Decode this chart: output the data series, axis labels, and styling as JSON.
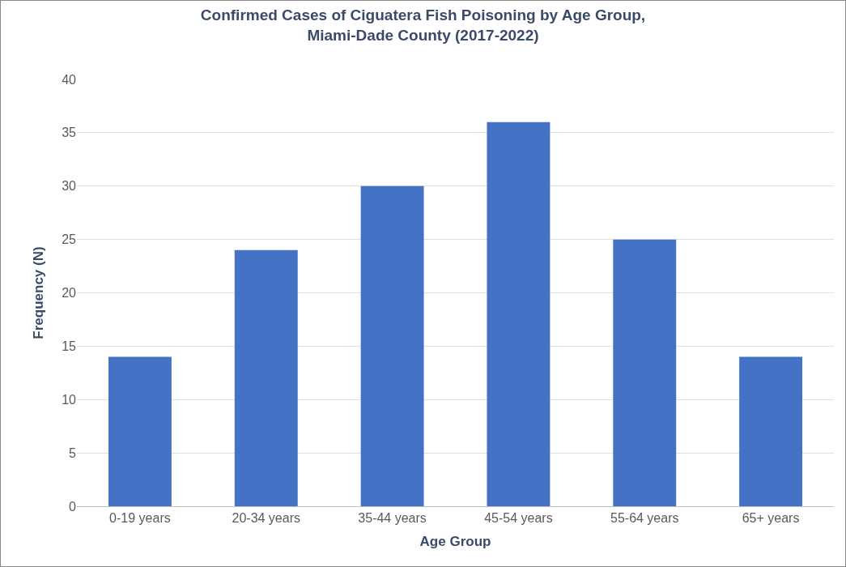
{
  "chart_data": {
    "type": "bar",
    "title": "Confirmed Cases of Ciguatera Fish Poisoning by Age Group,\nMiami-Dade County (2017-2022)",
    "xlabel": "Age Group",
    "ylabel": "Frequency (N)",
    "categories": [
      "0-19 years",
      "20-34 years",
      "35-44 years",
      "45-54 years",
      "55-64 years",
      "65+ years"
    ],
    "values": [
      14,
      24,
      30,
      36,
      25,
      14
    ],
    "color": "#4472c4",
    "ylim": [
      0,
      40
    ],
    "yticks": [
      0,
      5,
      10,
      15,
      20,
      25,
      30,
      35,
      40
    ],
    "grid": "y"
  }
}
